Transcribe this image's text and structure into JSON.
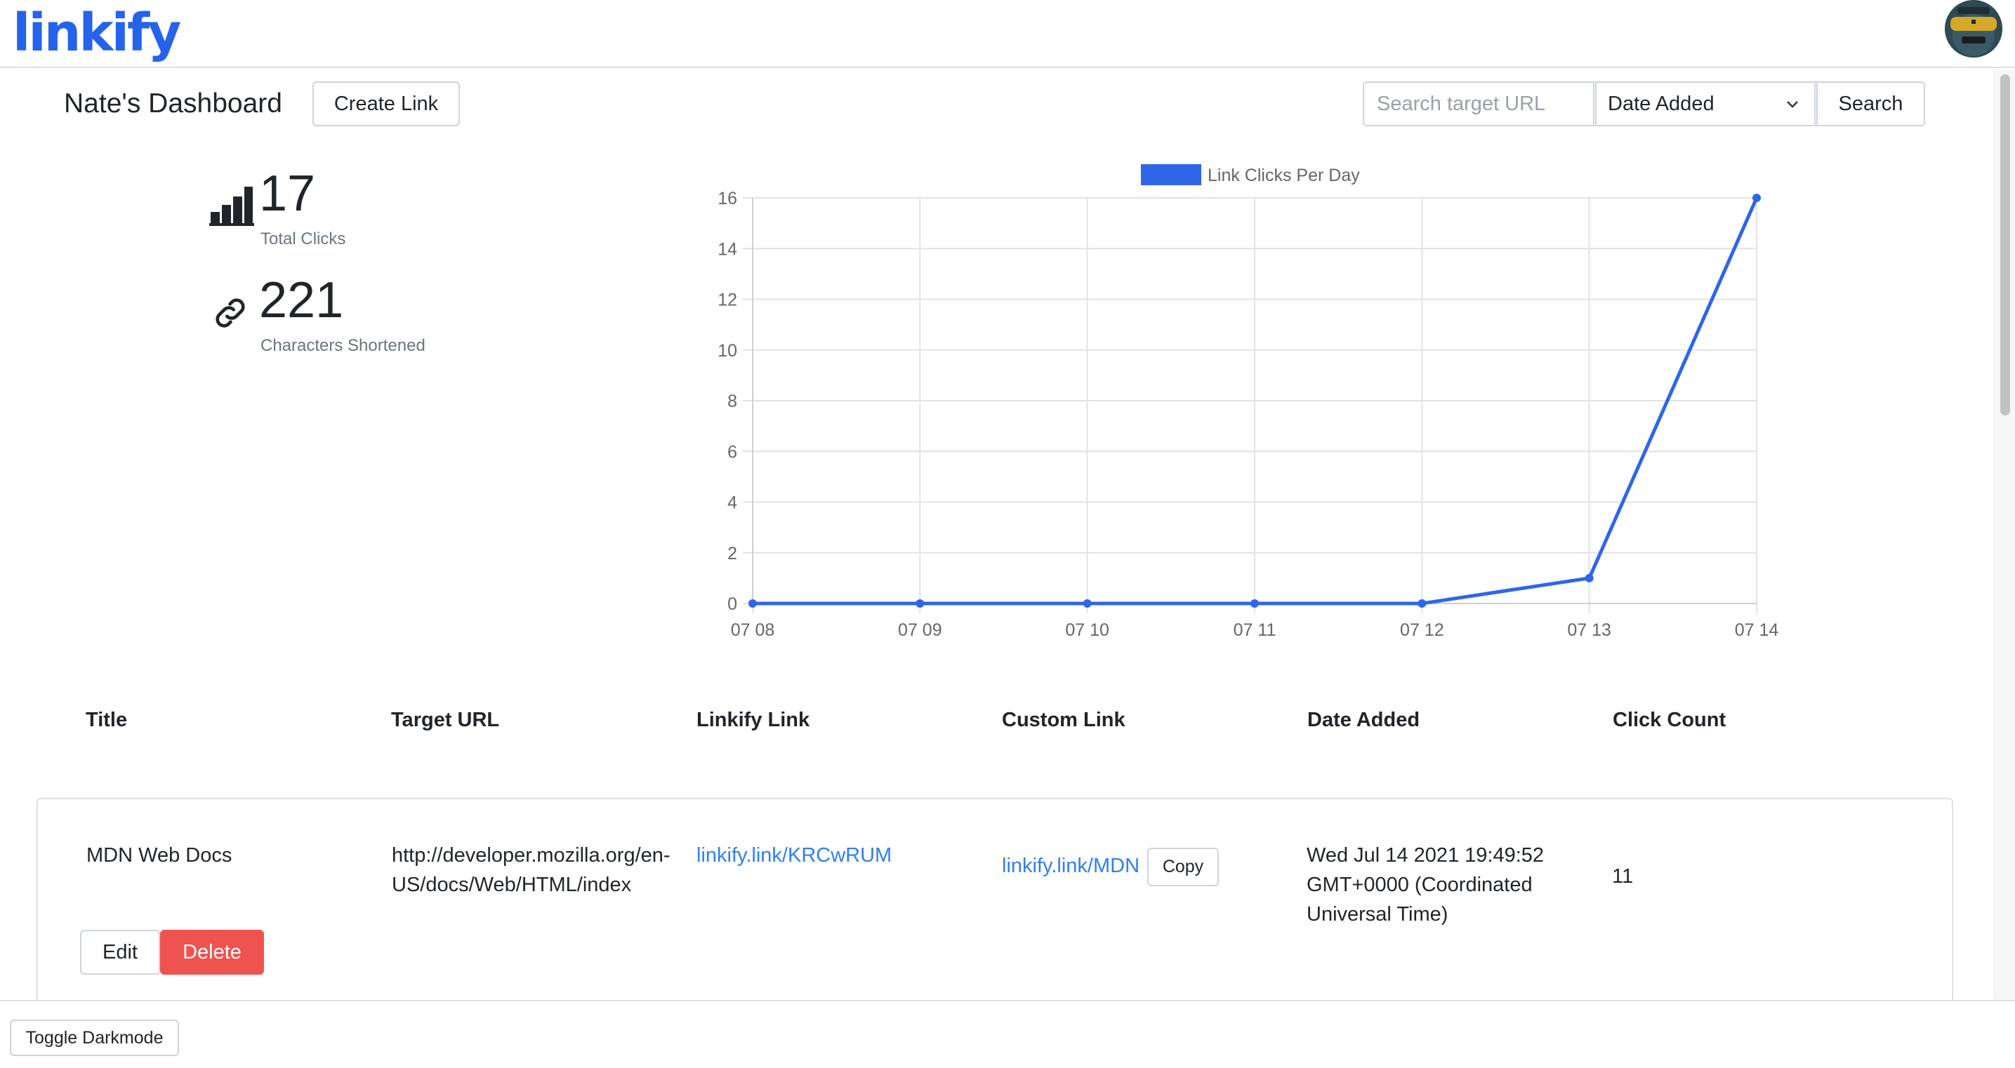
{
  "nav": {
    "brand": "linkify"
  },
  "header": {
    "title": "Nate's Dashboard",
    "create_label": "Create Link",
    "search_placeholder": "Search target URL",
    "sort_selected": "Date Added",
    "search_label": "Search"
  },
  "stats": {
    "total_clicks_value": "17",
    "total_clicks_label": "Total Clicks",
    "chars_value": "221",
    "chars_label": "Characters Shortened"
  },
  "chart_data": {
    "type": "line",
    "legend": "Link Clicks Per Day",
    "legend_position": "top",
    "color": "#2f66e7",
    "categories": [
      "07 08",
      "07 09",
      "07 10",
      "07 11",
      "07 12",
      "07 13",
      "07 14"
    ],
    "series": [
      {
        "name": "Link Clicks Per Day",
        "values": [
          0,
          0,
          0,
          0,
          0,
          1,
          16
        ]
      }
    ],
    "yticks": [
      0,
      2,
      4,
      6,
      8,
      10,
      12,
      14,
      16
    ],
    "ylim": [
      0,
      16
    ],
    "grid": true
  },
  "table": {
    "headers": [
      "Title",
      "Target URL",
      "Linkify Link",
      "Custom Link",
      "Date Added",
      "Click Count"
    ],
    "rows": [
      {
        "title": "MDN Web Docs",
        "target_line1": "http://developer.mozilla.org/en-",
        "target_line2": "US/docs/Web/HTML/index",
        "linkify_link": "linkify.link/KRCwRUM",
        "custom_link": "linkify.link/MDN",
        "copy_label": "Copy",
        "date_line1": "Wed Jul 14 2021 19:49:52",
        "date_line2": "GMT+0000 (Coordinated",
        "date_line3": "Universal Time)",
        "click_count": "11",
        "edit_label": "Edit",
        "delete_label": "Delete"
      }
    ]
  },
  "footer": {
    "darkmode_label": "Toggle Darkmode"
  }
}
